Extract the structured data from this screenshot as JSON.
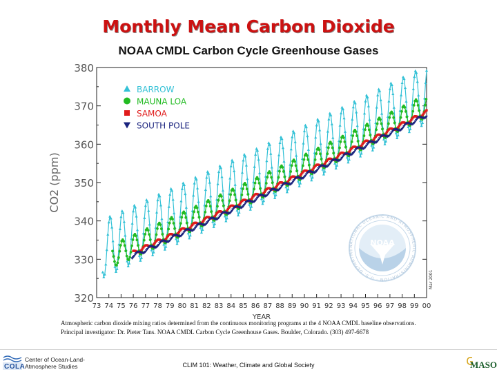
{
  "slide_title": "Monthly Mean Carbon Dioxide",
  "chart_title": "NOAA CMDL Carbon Cycle Greenhouse Gases",
  "caption_line1": "Atmospheric carbon dioxide mixing ratios determined from the continuous monitoring programs at the 4 NOAA CMDL baseline observations.",
  "caption_line2": "Principal investigator: Dr. Pieter Tans. NOAA CMDL Carbon Cycle Greenhouse Gases. Boulder, Colorado. (303) 497-6678",
  "footer": {
    "left_logo_text": "COLA",
    "left_org_line1": "Center of Ocean-Land-",
    "left_org_line2": "Atmosphere Studies",
    "center_text": "CLIM 101: Weather, Climate and Global Society",
    "right_logo_text": "MASON"
  },
  "noaa_logo": {
    "center_text": "NOAA",
    "ring_text": "NATIONAL OCEANIC AND ATMOSPHERIC ADMINISTRATION · U.S. DEPARTMENT OF COMMERCE",
    "stamp": "Mar 2001"
  },
  "chart_data": {
    "type": "line",
    "ylabel": "CO2 (ppm)",
    "xlabel": "YEAR",
    "ylim": [
      320,
      380
    ],
    "xlim": [
      73,
      100
    ],
    "yticks": [
      320,
      330,
      340,
      350,
      360,
      370,
      380
    ],
    "xticks": [
      "73",
      "74",
      "75",
      "76",
      "77",
      "78",
      "79",
      "80",
      "81",
      "82",
      "83",
      "84",
      "85",
      "86",
      "87",
      "88",
      "89",
      "90",
      "91",
      "92",
      "93",
      "94",
      "95",
      "96",
      "97",
      "98",
      "99",
      "00"
    ],
    "grid": false,
    "legend_position": "top-left",
    "series": [
      {
        "name": "BARROW",
        "color": "#33c1d6",
        "marker": "triangle",
        "start": 1973.5,
        "end": 2000.9,
        "base": 333.5,
        "slope": 1.43,
        "curv": 0.0035,
        "amplitude": 7.6,
        "phase": 0.3
      },
      {
        "name": "MAUNA LOA",
        "color": "#22bb22",
        "marker": "circle",
        "start": 1974.3,
        "end": 2000.9,
        "base": 330.5,
        "slope": 1.43,
        "curv": 0.0035,
        "amplitude": 3.0,
        "phase": 0.35
      },
      {
        "name": "SAMOA",
        "color": "#e01b1b",
        "marker": "square",
        "start": 1976.0,
        "end": 2000.9,
        "base": 328.8,
        "slope": 1.43,
        "curv": 0.0035,
        "amplitude": 0.5,
        "phase": 0.0
      },
      {
        "name": "SOUTH POLE",
        "color": "#1a237e",
        "marker": "triangle-down",
        "start": 1975.9,
        "end": 2000.9,
        "base": 328.0,
        "slope": 1.43,
        "curv": 0.0035,
        "amplitude": 0.5,
        "phase": 1.1
      }
    ]
  }
}
